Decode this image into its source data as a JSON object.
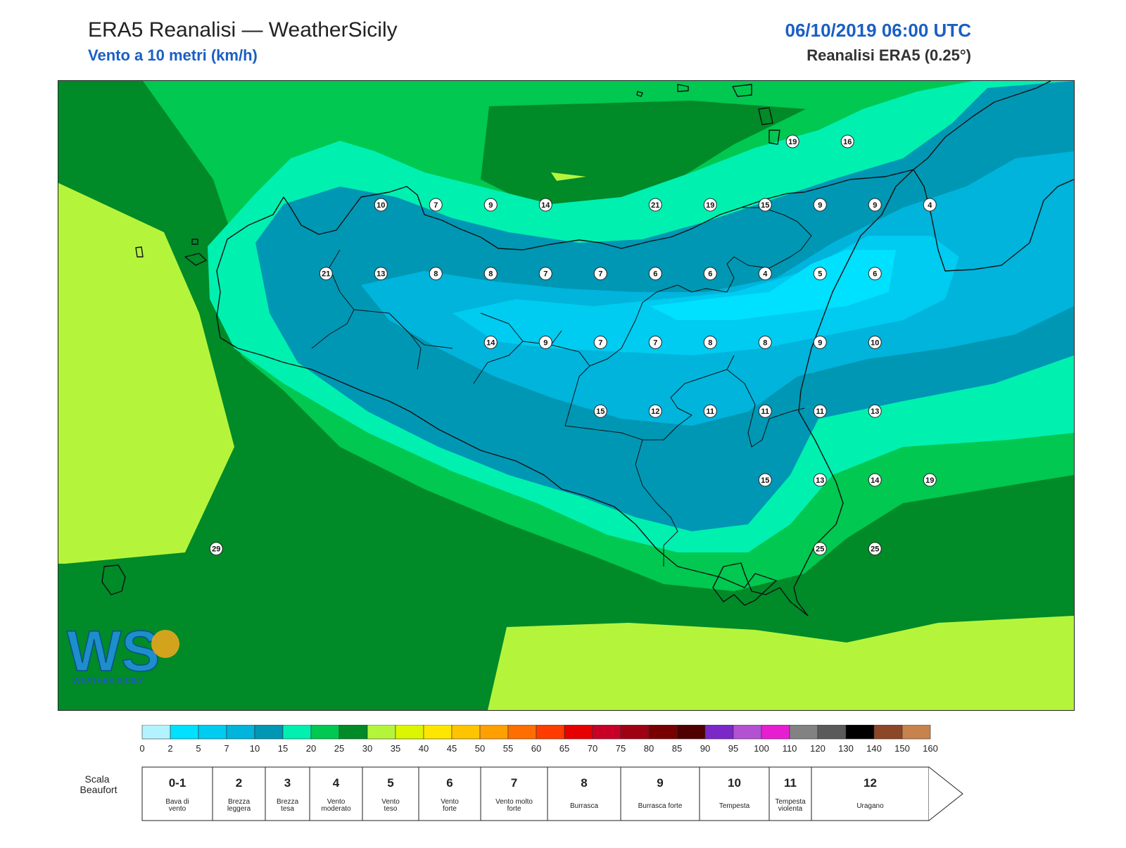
{
  "header": {
    "title": "ERA5 Reanalisi — WeatherSicily",
    "subtitle": "Vento a 10 metri (km/h)",
    "datetime": "06/10/2019 06:00 UTC",
    "model": "Reanalisi ERA5 (0.25°)"
  },
  "logo": {
    "letters": "WS",
    "caption": "WEATHER SICILY"
  },
  "stations": [
    {
      "value": "19",
      "lon": 15.55,
      "lat": 38.28
    },
    {
      "value": "16",
      "lon": 15.95,
      "lat": 38.28
    },
    {
      "value": "10",
      "lon": 12.55,
      "lat": 38.05
    },
    {
      "value": "7",
      "lon": 12.95,
      "lat": 38.05
    },
    {
      "value": "9",
      "lon": 13.35,
      "lat": 38.05
    },
    {
      "value": "14",
      "lon": 13.75,
      "lat": 38.05
    },
    {
      "value": "21",
      "lon": 14.55,
      "lat": 38.05
    },
    {
      "value": "19",
      "lon": 14.95,
      "lat": 38.05
    },
    {
      "value": "15",
      "lon": 15.35,
      "lat": 38.05
    },
    {
      "value": "9",
      "lon": 15.75,
      "lat": 38.05
    },
    {
      "value": "9",
      "lon": 16.15,
      "lat": 38.05
    },
    {
      "value": "4",
      "lon": 16.55,
      "lat": 38.05
    },
    {
      "value": "21",
      "lon": 12.15,
      "lat": 37.8
    },
    {
      "value": "13",
      "lon": 12.55,
      "lat": 37.8
    },
    {
      "value": "8",
      "lon": 12.95,
      "lat": 37.8
    },
    {
      "value": "8",
      "lon": 13.35,
      "lat": 37.8
    },
    {
      "value": "7",
      "lon": 13.75,
      "lat": 37.8
    },
    {
      "value": "7",
      "lon": 14.15,
      "lat": 37.8
    },
    {
      "value": "6",
      "lon": 14.55,
      "lat": 37.8
    },
    {
      "value": "6",
      "lon": 14.95,
      "lat": 37.8
    },
    {
      "value": "4",
      "lon": 15.35,
      "lat": 37.8
    },
    {
      "value": "5",
      "lon": 15.75,
      "lat": 37.8
    },
    {
      "value": "6",
      "lon": 16.15,
      "lat": 37.8
    },
    {
      "value": "14",
      "lon": 13.35,
      "lat": 37.55
    },
    {
      "value": "9",
      "lon": 13.75,
      "lat": 37.55
    },
    {
      "value": "7",
      "lon": 14.15,
      "lat": 37.55
    },
    {
      "value": "7",
      "lon": 14.55,
      "lat": 37.55
    },
    {
      "value": "8",
      "lon": 14.95,
      "lat": 37.55
    },
    {
      "value": "8",
      "lon": 15.35,
      "lat": 37.55
    },
    {
      "value": "9",
      "lon": 15.75,
      "lat": 37.55
    },
    {
      "value": "10",
      "lon": 16.15,
      "lat": 37.55
    },
    {
      "value": "15",
      "lon": 14.15,
      "lat": 37.3
    },
    {
      "value": "12",
      "lon": 14.55,
      "lat": 37.3
    },
    {
      "value": "11",
      "lon": 14.95,
      "lat": 37.3
    },
    {
      "value": "11",
      "lon": 15.35,
      "lat": 37.3
    },
    {
      "value": "11",
      "lon": 15.75,
      "lat": 37.3
    },
    {
      "value": "13",
      "lon": 16.15,
      "lat": 37.3
    },
    {
      "value": "15",
      "lon": 15.35,
      "lat": 37.05
    },
    {
      "value": "13",
      "lon": 15.75,
      "lat": 37.05
    },
    {
      "value": "14",
      "lon": 16.15,
      "lat": 37.05
    },
    {
      "value": "19",
      "lon": 16.55,
      "lat": 37.05
    },
    {
      "value": "25",
      "lon": 15.75,
      "lat": 36.8
    },
    {
      "value": "25",
      "lon": 16.15,
      "lat": 36.8
    },
    {
      "value": "29",
      "lon": 11.35,
      "lat": 36.8
    }
  ],
  "colorbar": {
    "ticks": [
      "0",
      "2",
      "5",
      "7",
      "10",
      "15",
      "20",
      "25",
      "30",
      "35",
      "40",
      "45",
      "50",
      "55",
      "60",
      "65",
      "70",
      "75",
      "80",
      "85",
      "90",
      "95",
      "100",
      "110",
      "120",
      "130",
      "140",
      "150",
      "160"
    ],
    "colors": [
      "#b3f3ff",
      "#00e0ff",
      "#00cbf0",
      "#00b4dc",
      "#0097b4",
      "#00f0b0",
      "#00c850",
      "#008a28",
      "#b4f53c",
      "#dcf500",
      "#ffe600",
      "#ffc400",
      "#ffa000",
      "#ff6e00",
      "#ff3c00",
      "#e60000",
      "#c80028",
      "#a00014",
      "#780000",
      "#500000",
      "#7a28c8",
      "#b450d2",
      "#e61ed2",
      "#828282",
      "#5a5a5a",
      "#000000",
      "#8c4628",
      "#c8824b"
    ]
  },
  "beaufort": {
    "label": "Scala Beaufort",
    "classes": [
      {
        "num": "0-1",
        "desc": "Bava di vento"
      },
      {
        "num": "2",
        "desc": "Brezza leggera"
      },
      {
        "num": "3",
        "desc": "Brezza tesa"
      },
      {
        "num": "4",
        "desc": "Vento moderato"
      },
      {
        "num": "5",
        "desc": "Vento teso"
      },
      {
        "num": "6",
        "desc": "Vento forte"
      },
      {
        "num": "7",
        "desc": "Vento molto forte"
      },
      {
        "num": "8",
        "desc": "Burrasca"
      },
      {
        "num": "9",
        "desc": "Burrasca forte"
      },
      {
        "num": "10",
        "desc": "Tempesta"
      },
      {
        "num": "11",
        "desc": "Tempesta violenta"
      },
      {
        "num": "12",
        "desc": "Uragano"
      }
    ]
  }
}
